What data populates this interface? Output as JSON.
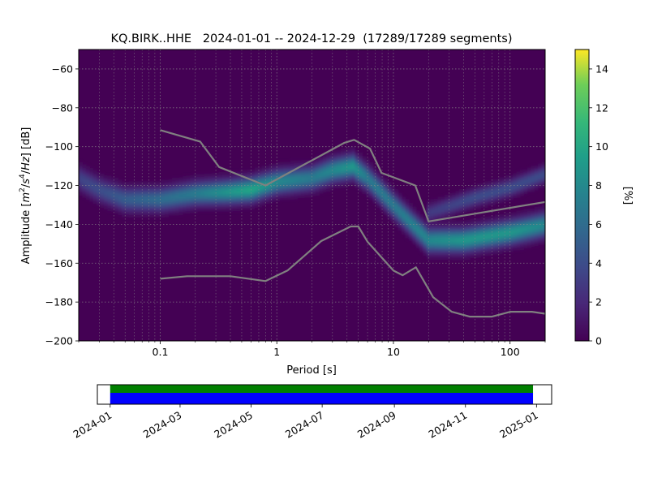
{
  "chart_data": [
    {
      "type": "heatmap",
      "title": "KQ.BIRK..HHE   2024-01-01 -- 2024-12-29  (17289/17289 segments)",
      "xlabel": "Period [s]",
      "ylabel_parts": [
        "Amplitude [",
        "m",
        "2",
        "/",
        "s",
        "4",
        "/",
        "Hz",
        "] [dB]"
      ],
      "x_scale": "log",
      "xlim": [
        0.02,
        200
      ],
      "ylim": [
        -200,
        -50
      ],
      "x_ticks": [
        {
          "value": 0.1,
          "label": "0.1"
        },
        {
          "value": 1,
          "label": "1"
        },
        {
          "value": 10,
          "label": "10"
        },
        {
          "value": 100,
          "label": "100"
        }
      ],
      "y_ticks": [
        {
          "value": -60,
          "label": "−60"
        },
        {
          "value": -80,
          "label": "−80"
        },
        {
          "value": -100,
          "label": "−100"
        },
        {
          "value": -120,
          "label": "−120"
        },
        {
          "value": -140,
          "label": "−140"
        },
        {
          "value": -160,
          "label": "−160"
        },
        {
          "value": -180,
          "label": "−180"
        },
        {
          "value": -200,
          "label": "−200"
        }
      ],
      "grid": true,
      "colormap": "viridis",
      "background_color": "#440154",
      "colorbar": {
        "label": "[%]",
        "range": [
          0,
          15
        ],
        "ticks": [
          {
            "value": 0,
            "label": "0"
          },
          {
            "value": 2,
            "label": "2"
          },
          {
            "value": 4,
            "label": "4"
          },
          {
            "value": 6,
            "label": "6"
          },
          {
            "value": 8,
            "label": "8"
          },
          {
            "value": 10,
            "label": "10"
          },
          {
            "value": 12,
            "label": "12"
          },
          {
            "value": 14,
            "label": "14"
          }
        ]
      },
      "density_ridge": [
        {
          "period": 0.02,
          "db": -116,
          "peak": 3.5
        },
        {
          "period": 0.03,
          "db": -122,
          "peak": 4
        },
        {
          "period": 0.05,
          "db": -127,
          "peak": 5
        },
        {
          "period": 0.1,
          "db": -127,
          "peak": 6
        },
        {
          "period": 0.2,
          "db": -124,
          "peak": 7
        },
        {
          "period": 0.4,
          "db": -123,
          "peak": 9
        },
        {
          "period": 0.6,
          "db": -122,
          "peak": 10
        },
        {
          "period": 1,
          "db": -118,
          "peak": 8
        },
        {
          "period": 2,
          "db": -116,
          "peak": 7
        },
        {
          "period": 3,
          "db": -112,
          "peak": 8
        },
        {
          "period": 4.5,
          "db": -110,
          "peak": 9
        },
        {
          "period": 6,
          "db": -116,
          "peak": 7
        },
        {
          "period": 10,
          "db": -130,
          "peak": 7
        },
        {
          "period": 20,
          "db": -148,
          "peak": 8
        },
        {
          "period": 40,
          "db": -148,
          "peak": 9
        },
        {
          "period": 100,
          "db": -144,
          "peak": 9
        },
        {
          "period": 200,
          "db": -140,
          "peak": 8
        }
      ],
      "secondary_ridge": [
        {
          "period": 20,
          "db": -134,
          "peak": 3
        },
        {
          "period": 50,
          "db": -126,
          "peak": 4
        },
        {
          "period": 100,
          "db": -121,
          "peak": 4
        },
        {
          "period": 200,
          "db": -114,
          "peak": 4
        }
      ],
      "series": [
        {
          "style": "NHNM",
          "color": "#808080",
          "points": [
            {
              "period": 0.1,
              "db": -91.5
            },
            {
              "period": 0.22,
              "db": -97.4
            },
            {
              "period": 0.32,
              "db": -110.5
            },
            {
              "period": 0.8,
              "db": -120
            },
            {
              "period": 3.8,
              "db": -98
            },
            {
              "period": 4.6,
              "db": -96.5
            },
            {
              "period": 6.3,
              "db": -101
            },
            {
              "period": 7.9,
              "db": -113.5
            },
            {
              "period": 15.4,
              "db": -120
            },
            {
              "period": 20,
              "db": -138.5
            },
            {
              "period": 354.8,
              "db": -126
            }
          ]
        },
        {
          "style": "NLNM",
          "color": "#808080",
          "points": [
            {
              "period": 0.1,
              "db": -168
            },
            {
              "period": 0.17,
              "db": -166.7
            },
            {
              "period": 0.4,
              "db": -166.7
            },
            {
              "period": 0.8,
              "db": -169.2
            },
            {
              "period": 1.24,
              "db": -163.7
            },
            {
              "period": 2.4,
              "db": -148.6
            },
            {
              "period": 4.3,
              "db": -141.1
            },
            {
              "period": 5,
              "db": -141.1
            },
            {
              "period": 6,
              "db": -149
            },
            {
              "period": 10,
              "db": -163.8
            },
            {
              "period": 12,
              "db": -166.2
            },
            {
              "period": 15.6,
              "db": -162.1
            },
            {
              "period": 21.9,
              "db": -177.5
            },
            {
              "period": 31.6,
              "db": -185
            },
            {
              "period": 45,
              "db": -187.5
            },
            {
              "period": 70,
              "db": -187.5
            },
            {
              "period": 101,
              "db": -185
            },
            {
              "period": 154,
              "db": -185
            },
            {
              "period": 200,
              "db": -186
            }
          ]
        }
      ]
    },
    {
      "type": "timeline",
      "x_range": [
        "2023-12-21",
        "2025-01-14"
      ],
      "coverage": [
        {
          "start": "2024-01-01",
          "end": "2024-12-29",
          "color": "#008000",
          "band": "upper"
        },
        {
          "start": "2024-01-01",
          "end": "2024-12-29",
          "color": "#0000ff",
          "band": "lower"
        }
      ],
      "tick_labels": [
        {
          "date": "2024-01-01",
          "label": "2024-01"
        },
        {
          "date": "2024-03-01",
          "label": "2024-03"
        },
        {
          "date": "2024-05-01",
          "label": "2024-05"
        },
        {
          "date": "2024-07-01",
          "label": "2024-07"
        },
        {
          "date": "2024-09-01",
          "label": "2024-09"
        },
        {
          "date": "2024-11-01",
          "label": "2024-11"
        },
        {
          "date": "2025-01-01",
          "label": "2025-01"
        }
      ]
    }
  ]
}
